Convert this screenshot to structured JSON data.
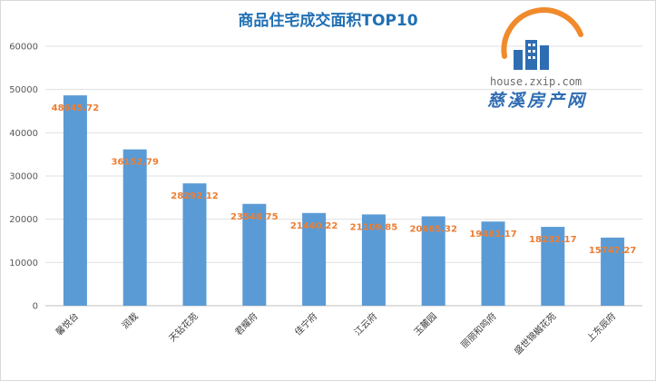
{
  "chart_data": {
    "type": "bar",
    "title": "商品住宅成交面积TOP10",
    "categories": [
      "馨悦台",
      "润栽",
      "天钻花苑",
      "君耀府",
      "佳宁府",
      "江云府",
      "玉麓园",
      "丽丽和鸣府",
      "盛世锦樾花苑",
      "上东辰府"
    ],
    "values": [
      48645.72,
      36152.79,
      28292.12,
      23548.75,
      21440.22,
      21109.85,
      20665.32,
      19461.17,
      18232.17,
      15747.27
    ],
    "value_labels": [
      "48645.72",
      "36152.79",
      "28292.12",
      "23548.75",
      "21440.22",
      "21109.85",
      "20665.32",
      "19461.17",
      "18232.17",
      "15747.27"
    ],
    "yticks": [
      "0",
      "10000",
      "20000",
      "30000",
      "40000",
      "50000",
      "60000"
    ],
    "ylim": [
      0,
      60000
    ],
    "grid": true,
    "bar_color": "#5b9bd5",
    "label_color": "#ed7d31"
  },
  "watermark": {
    "url": "house.zxip.com",
    "name": "慈溪房产网",
    "logo": "building-sun-logo-icon"
  }
}
